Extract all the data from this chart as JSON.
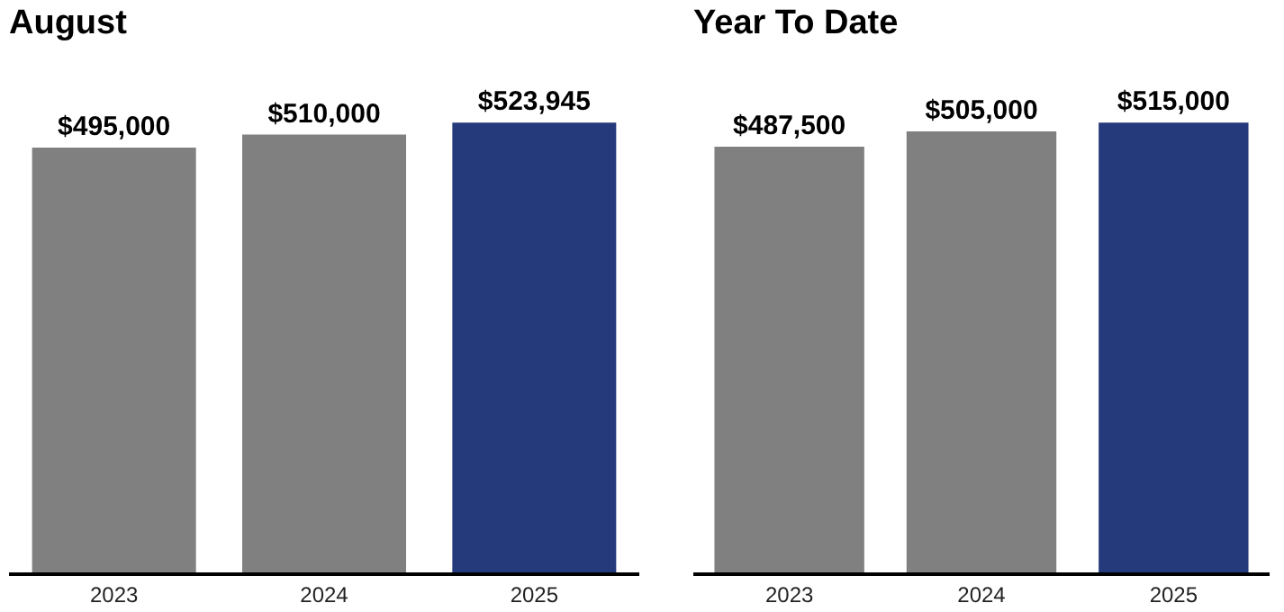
{
  "chart_data": [
    {
      "type": "bar",
      "title": "August",
      "categories": [
        "2023",
        "2024",
        "2025"
      ],
      "values": [
        495000,
        510000,
        523945
      ],
      "colors": [
        "#808080",
        "#808080",
        "#253a7b"
      ],
      "value_labels": [
        "$495,000",
        "$510,000",
        "$523,945"
      ],
      "tick_labels": "x"
    },
    {
      "type": "bar",
      "title": "Year To Date",
      "categories": [
        "2023",
        "2024",
        "2025"
      ],
      "values": [
        487500,
        505000,
        515000
      ],
      "colors": [
        "#808080",
        "#808080",
        "#253a7b"
      ],
      "value_labels": [
        "$487,500",
        "$505,000",
        "$515,000"
      ],
      "tick_labels": "x"
    }
  ]
}
